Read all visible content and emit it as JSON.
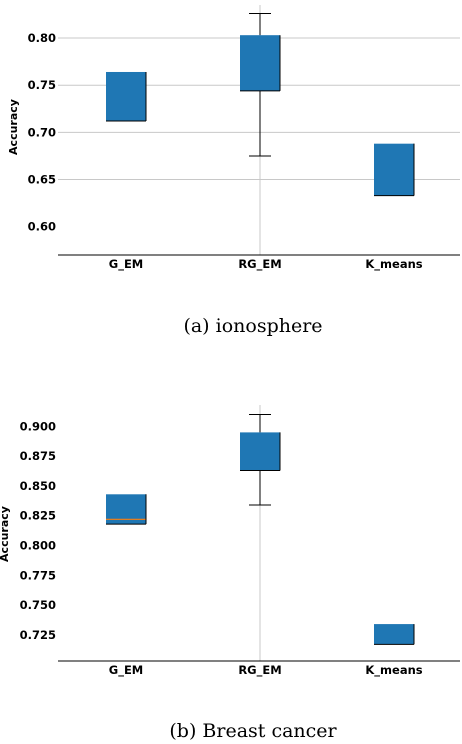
{
  "chart_data": [
    {
      "type": "box",
      "caption": "(a) ionosphere",
      "ylabel": "Accuracy",
      "xlabel": "",
      "categories": [
        "G_EM",
        "RG_EM",
        "K_means"
      ],
      "yticks": [
        "0.60",
        "0.65",
        "0.70",
        "0.75",
        "0.80"
      ],
      "ylim": [
        0.57,
        0.835
      ],
      "grid": "y and selected x",
      "boxes": [
        {
          "q1": 0.712,
          "median": 0.712,
          "q3": 0.764,
          "whisker_low": null,
          "whisker_high": null
        },
        {
          "q1": 0.744,
          "median": 0.744,
          "q3": 0.803,
          "whisker_low": 0.675,
          "whisker_high": 0.826
        },
        {
          "q1": 0.633,
          "median": 0.633,
          "q3": 0.688,
          "whisker_low": null,
          "whisker_high": null
        }
      ]
    },
    {
      "type": "box",
      "caption": "(b) Breast cancer",
      "ylabel": "Accuracy",
      "xlabel": "",
      "categories": [
        "G_EM",
        "RG_EM",
        "K_means"
      ],
      "yticks": [
        "0.725",
        "0.750",
        "0.775",
        "0.800",
        "0.825",
        "0.850",
        "0.875",
        "0.900"
      ],
      "ylim": [
        0.703,
        0.918
      ],
      "grid": "selected x",
      "boxes": [
        {
          "q1": 0.818,
          "median": 0.822,
          "q3": 0.843,
          "whisker_low": null,
          "whisker_high": null
        },
        {
          "q1": 0.863,
          "median": 0.863,
          "q3": 0.895,
          "whisker_low": 0.834,
          "whisker_high": 0.91
        },
        {
          "q1": 0.717,
          "median": 0.717,
          "q3": 0.734,
          "whisker_low": null,
          "whisker_high": null
        }
      ]
    }
  ],
  "colors": {
    "box": "#1f77b4",
    "median": "#ff7f0e",
    "grid": "#c8c8c8",
    "axis": "#000000"
  }
}
